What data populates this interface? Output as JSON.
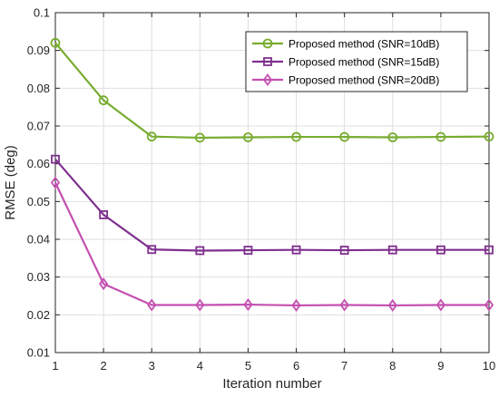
{
  "chart_data": {
    "type": "line",
    "title": "",
    "xlabel": "Iteration number",
    "ylabel": "RMSE (deg)",
    "x": [
      1,
      2,
      3,
      4,
      5,
      6,
      7,
      8,
      9,
      10
    ],
    "xlim": [
      1,
      10
    ],
    "ylim": [
      0.01,
      0.1
    ],
    "xticks": [
      1,
      2,
      3,
      4,
      5,
      6,
      7,
      8,
      9,
      10
    ],
    "yticks": [
      0.01,
      0.02,
      0.03,
      0.04,
      0.05,
      0.06,
      0.07,
      0.08,
      0.09,
      0.1
    ],
    "xtick_labels": [
      "1",
      "2",
      "3",
      "4",
      "5",
      "6",
      "7",
      "8",
      "9",
      "10"
    ],
    "ytick_labels": [
      "0.01",
      "0.02",
      "0.03",
      "0.04",
      "0.05",
      "0.06",
      "0.07",
      "0.08",
      "0.09",
      "0.1"
    ],
    "grid": true,
    "legend_position": "top-right",
    "series": [
      {
        "name": "Proposed method (SNR=10dB)",
        "color": "#77AC30",
        "marker": "circle",
        "values": [
          0.092,
          0.0768,
          0.0672,
          0.0669,
          0.067,
          0.0671,
          0.0671,
          0.067,
          0.0671,
          0.0672
        ]
      },
      {
        "name": "Proposed method (SNR=15dB)",
        "color": "#7E2F8E",
        "marker": "square",
        "values": [
          0.0612,
          0.0465,
          0.0373,
          0.037,
          0.0371,
          0.0372,
          0.0371,
          0.0372,
          0.0372,
          0.0372
        ]
      },
      {
        "name": "Proposed method (SNR=20dB)",
        "color": "#C44FB0",
        "marker": "diamond",
        "values": [
          0.055,
          0.0282,
          0.0226,
          0.0226,
          0.0227,
          0.0225,
          0.0226,
          0.0225,
          0.0226,
          0.0226
        ]
      }
    ]
  }
}
